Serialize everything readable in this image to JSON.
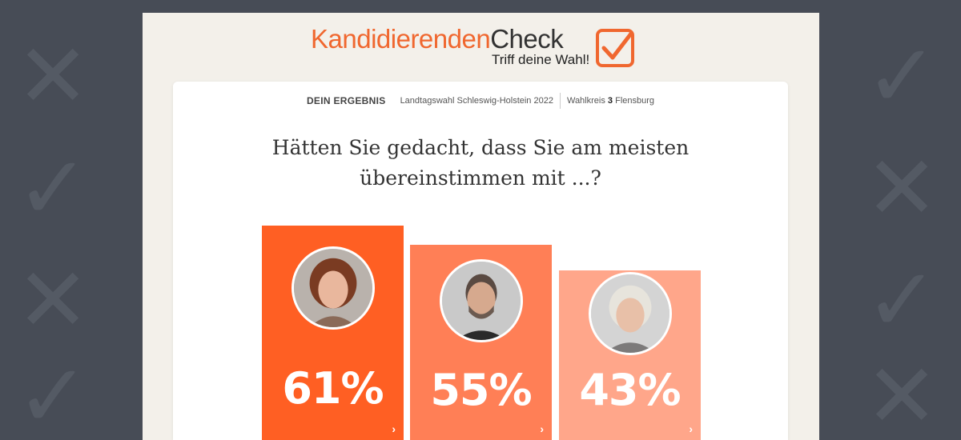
{
  "theme": {
    "accent": "#f0672f",
    "bar_colors": [
      "#ff5f23",
      "#ff7f56",
      "#ffa68a"
    ]
  },
  "logo": {
    "part1": "Kandidierenden",
    "part2": "Check",
    "tagline": "Triff deine Wahl!",
    "icon": "checkbox-check-icon"
  },
  "result_header": {
    "label": "DEIN ERGEBNIS",
    "election": "Landtagswahl Schleswig-Holstein 2022",
    "wahlkreis_prefix": "Wahlkreis",
    "wahlkreis_number": "3",
    "wahlkreis_name": "Flensburg"
  },
  "question": {
    "line1": "Hätten Sie gedacht, dass Sie am meisten",
    "line2": "übereinstimmen mit ...?"
  },
  "candidates": [
    {
      "percent": "61%",
      "value": 61,
      "avatar_icon": "woman-portrait-icon",
      "chevron": "›"
    },
    {
      "percent": "55%",
      "value": 55,
      "avatar_icon": "man-portrait-icon",
      "chevron": "›"
    },
    {
      "percent": "43%",
      "value": 43,
      "avatar_icon": "older-woman-portrait-icon",
      "chevron": "›"
    }
  ]
}
